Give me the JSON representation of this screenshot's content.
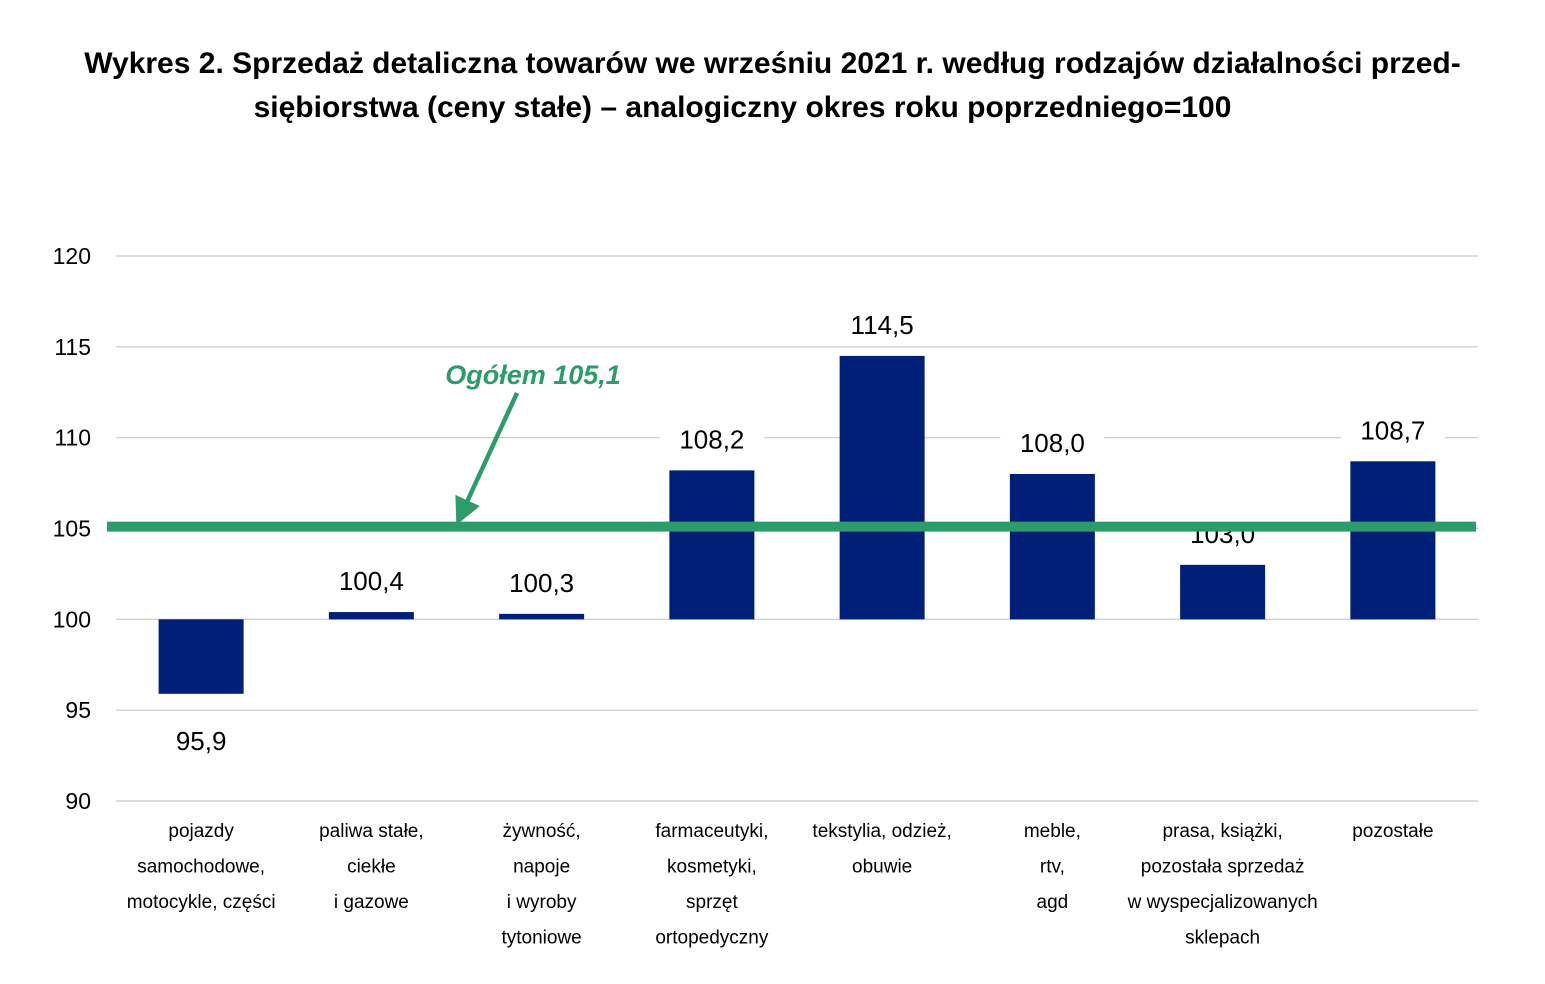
{
  "title_line1": "Wykres 2. Sprzedaż detaliczna towarów we wrześniu 2021 r. według rodzajów działalności przed-",
  "title_line2": "siębiorstwa (ceny stałe) – analogiczny okres roku poprzedniego=100",
  "colors": {
    "bar": "#001f78",
    "reference_line": "#2e9b6b",
    "grid": "#c8c8c8"
  },
  "chart_data": {
    "type": "bar",
    "title": "Wykres 2. Sprzedaż detaliczna towarów we wrześniu 2021 r. według rodzajów działalności przedsiębiorstwa (ceny stałe) – analogiczny okres roku poprzedniego=100",
    "baseline": 100,
    "ylim": [
      90,
      120
    ],
    "yticks": [
      90,
      95,
      100,
      105,
      110,
      115,
      120
    ],
    "grid": true,
    "categories": [
      [
        "pojazdy",
        "samochodowe,",
        "motocykle, części"
      ],
      [
        "paliwa stałe,",
        "ciekłe",
        "i gazowe"
      ],
      [
        "żywność,",
        "napoje",
        "i wyroby",
        "tytoniowe"
      ],
      [
        "farmaceutyki,",
        "kosmetyki,",
        "sprzęt",
        "ortopedyczny"
      ],
      [
        "tekstylia, odzież,",
        "obuwie"
      ],
      [
        "meble,",
        "rtv,",
        "agd"
      ],
      [
        "prasa, książki,",
        "pozostała sprzedaż",
        "w wyspecjalizowanych",
        "sklepach"
      ],
      [
        "pozostałe"
      ]
    ],
    "values": [
      95.9,
      100.4,
      100.3,
      108.2,
      114.5,
      108.0,
      103.0,
      108.7
    ],
    "value_labels": [
      "95,9",
      "100,4",
      "100,3",
      "108,2",
      "114,5",
      "108,0",
      "103,0",
      "108,7"
    ],
    "reference": {
      "label": "Ogółem 105,1",
      "value": 105.1
    }
  }
}
